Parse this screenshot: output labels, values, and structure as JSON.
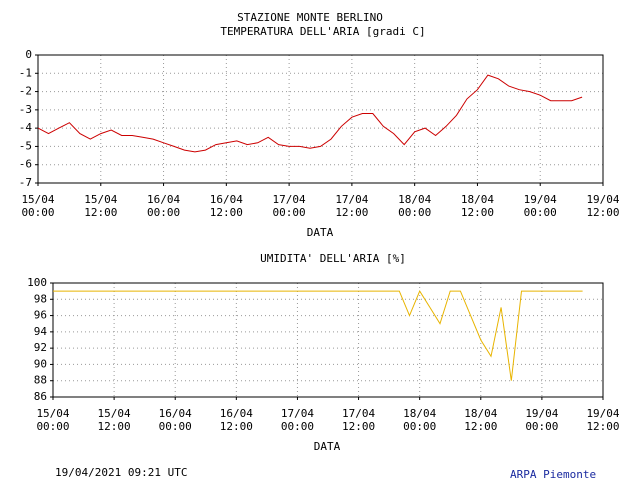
{
  "chart_data": [
    {
      "type": "line",
      "title": "STAZIONE MONTE BERLINO",
      "subtitle": "TEMPERATURA DELL'ARIA [gradi C]",
      "xlabel": "DATA",
      "x": [
        "15/04 00:00",
        "15/04 02:00",
        "15/04 04:00",
        "15/04 06:00",
        "15/04 08:00",
        "15/04 10:00",
        "15/04 12:00",
        "15/04 14:00",
        "15/04 16:00",
        "15/04 18:00",
        "15/04 20:00",
        "15/04 22:00",
        "16/04 00:00",
        "16/04 02:00",
        "16/04 04:00",
        "16/04 06:00",
        "16/04 08:00",
        "16/04 10:00",
        "16/04 12:00",
        "16/04 14:00",
        "16/04 16:00",
        "16/04 18:00",
        "16/04 20:00",
        "16/04 22:00",
        "17/04 00:00",
        "17/04 02:00",
        "17/04 04:00",
        "17/04 06:00",
        "17/04 08:00",
        "17/04 10:00",
        "17/04 12:00",
        "17/04 14:00",
        "17/04 16:00",
        "17/04 18:00",
        "17/04 20:00",
        "17/04 22:00",
        "18/04 00:00",
        "18/04 02:00",
        "18/04 04:00",
        "18/04 06:00",
        "18/04 08:00",
        "18/04 10:00",
        "18/04 12:00",
        "18/04 14:00",
        "18/04 16:00",
        "18/04 18:00",
        "18/04 20:00",
        "18/04 22:00",
        "19/04 00:00",
        "19/04 02:00",
        "19/04 04:00",
        "19/04 06:00",
        "19/04 08:00"
      ],
      "series": [
        {
          "color": "#cc0000",
          "values": [
            -4.0,
            -4.3,
            -4.0,
            -3.7,
            -4.3,
            -4.6,
            -4.3,
            -4.1,
            -4.4,
            -4.4,
            -4.5,
            -4.6,
            -4.8,
            -5.0,
            -5.2,
            -5.3,
            -5.2,
            -4.9,
            -4.8,
            -4.7,
            -4.9,
            -4.8,
            -4.5,
            -4.9,
            -5.0,
            -5.0,
            -5.1,
            -5.0,
            -4.6,
            -3.9,
            -3.4,
            -3.2,
            -3.2,
            -3.9,
            -4.3,
            -4.9,
            -4.2,
            -4.0,
            -4.4,
            -3.9,
            -3.3,
            -2.4,
            -1.9,
            -1.1,
            -1.3,
            -1.7,
            -1.9,
            -2.0,
            -2.2,
            -2.5,
            -2.5,
            -2.5,
            -2.3
          ]
        }
      ],
      "xlim": [
        "15/04 00:00",
        "19/04 12:00"
      ],
      "xticks": [
        "15/04 00:00",
        "15/04 12:00",
        "16/04 00:00",
        "16/04 12:00",
        "17/04 00:00",
        "17/04 12:00",
        "18/04 00:00",
        "18/04 12:00",
        "19/04 00:00",
        "19/04 12:00"
      ],
      "ylim": [
        -7,
        0
      ],
      "yticks": [
        0,
        -1,
        -2,
        -3,
        -4,
        -5,
        -6,
        -7
      ],
      "grid": true
    },
    {
      "type": "line",
      "title": "UMIDITA' DELL'ARIA [%]",
      "xlabel": "DATA",
      "x": [
        "15/04 00:00",
        "15/04 02:00",
        "15/04 04:00",
        "15/04 06:00",
        "15/04 08:00",
        "15/04 10:00",
        "15/04 12:00",
        "15/04 14:00",
        "15/04 16:00",
        "15/04 18:00",
        "15/04 20:00",
        "15/04 22:00",
        "16/04 00:00",
        "16/04 02:00",
        "16/04 04:00",
        "16/04 06:00",
        "16/04 08:00",
        "16/04 10:00",
        "16/04 12:00",
        "16/04 14:00",
        "16/04 16:00",
        "16/04 18:00",
        "16/04 20:00",
        "16/04 22:00",
        "17/04 00:00",
        "17/04 02:00",
        "17/04 04:00",
        "17/04 06:00",
        "17/04 08:00",
        "17/04 10:00",
        "17/04 12:00",
        "17/04 14:00",
        "17/04 16:00",
        "17/04 18:00",
        "17/04 20:00",
        "17/04 22:00",
        "18/04 00:00",
        "18/04 02:00",
        "18/04 04:00",
        "18/04 06:00",
        "18/04 08:00",
        "18/04 10:00",
        "18/04 12:00",
        "18/04 14:00",
        "18/04 16:00",
        "18/04 18:00",
        "18/04 20:00",
        "18/04 22:00",
        "19/04 00:00",
        "19/04 02:00",
        "19/04 04:00",
        "19/04 06:00",
        "19/04 08:00"
      ],
      "series": [
        {
          "color": "#e8b400",
          "values": [
            99,
            99,
            99,
            99,
            99,
            99,
            99,
            99,
            99,
            99,
            99,
            99,
            99,
            99,
            99,
            99,
            99,
            99,
            99,
            99,
            99,
            99,
            99,
            99,
            99,
            99,
            99,
            99,
            99,
            99,
            99,
            99,
            99,
            99,
            99,
            96,
            99,
            97,
            95,
            99,
            99,
            96,
            93,
            91,
            97,
            88,
            99,
            99,
            99,
            99,
            99,
            99,
            99
          ]
        }
      ],
      "xlim": [
        "15/04 00:00",
        "19/04 12:00"
      ],
      "xticks": [
        "15/04 00:00",
        "15/04 12:00",
        "16/04 00:00",
        "16/04 12:00",
        "17/04 00:00",
        "17/04 12:00",
        "18/04 00:00",
        "18/04 12:00",
        "19/04 00:00",
        "19/04 12:00"
      ],
      "ylim": [
        86,
        100
      ],
      "yticks": [
        100,
        98,
        96,
        94,
        92,
        90,
        88,
        86
      ],
      "grid": true
    }
  ],
  "footer": {
    "timestamp": "19/04/2021 09:21 UTC",
    "source": "ARPA Piemonte"
  }
}
